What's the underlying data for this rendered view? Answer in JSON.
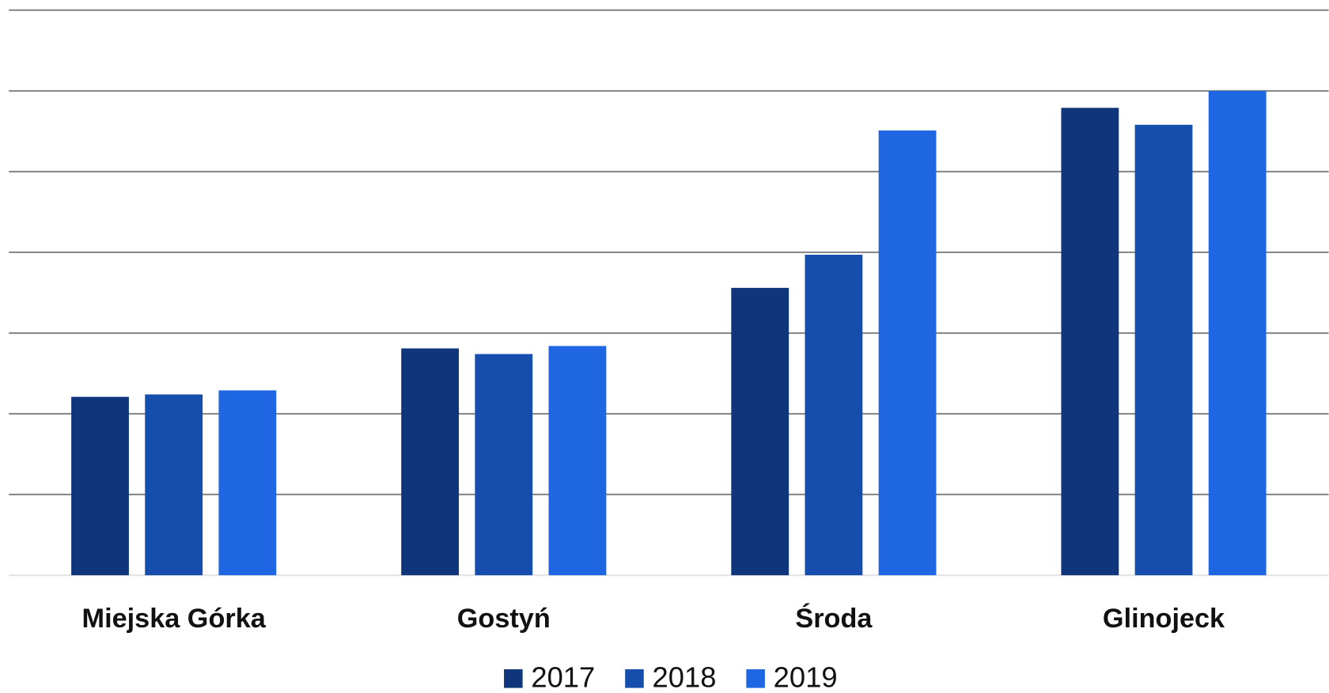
{
  "chart_data": {
    "type": "bar",
    "categories": [
      "Miejska Górka",
      "Gostyń",
      "Środa",
      "Glinojeck"
    ],
    "series": [
      {
        "name": "2017",
        "color": "#0f367a",
        "values": [
          2.21,
          2.81,
          3.56,
          5.79
        ]
      },
      {
        "name": "2018",
        "color": "#164ead",
        "values": [
          2.24,
          2.74,
          3.97,
          5.58
        ]
      },
      {
        "name": "2019",
        "color": "#1f66e3",
        "values": [
          2.29,
          2.84,
          5.51,
          6.0
        ]
      }
    ],
    "ylim": [
      0,
      7
    ],
    "yticks": [
      0,
      1,
      2,
      3,
      4,
      5,
      6,
      7
    ],
    "grid": true,
    "legend": "bottom"
  }
}
